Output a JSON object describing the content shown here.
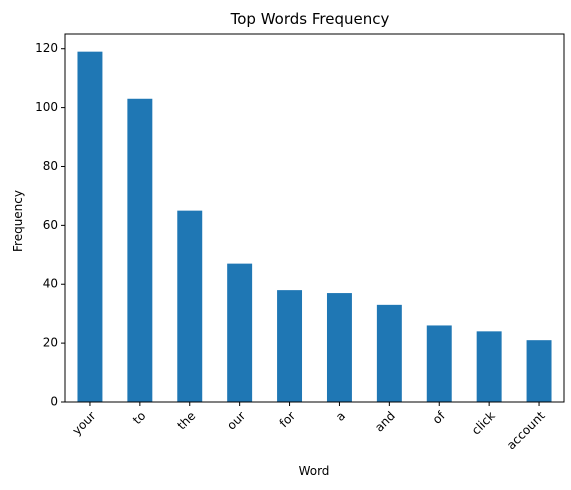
{
  "chart_data": {
    "type": "bar",
    "title": "Top Words Frequency",
    "xlabel": "Word",
    "ylabel": "Frequency",
    "categories": [
      "your",
      "to",
      "the",
      "our",
      "for",
      "a",
      "and",
      "of",
      "click",
      "account"
    ],
    "values": [
      119,
      103,
      65,
      47,
      38,
      37,
      33,
      26,
      24,
      21
    ],
    "ylim": [
      0,
      125
    ],
    "yticks": [
      0,
      20,
      40,
      60,
      80,
      100,
      120
    ],
    "grid": false,
    "bar_color": "#1f77b4",
    "x_tick_rotation": 45
  }
}
